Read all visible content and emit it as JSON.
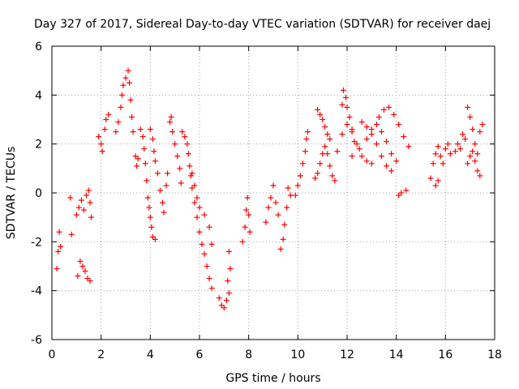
{
  "chart_data": {
    "type": "scatter",
    "title": "Day 327 of 2017, Sidereal Day-to-day VTEC variation (SDTVAR) for receiver daej",
    "xlabel": "GPS time / hours",
    "ylabel": "SDTVAR / TECUs",
    "xlim": [
      0,
      18
    ],
    "ylim": [
      -6,
      6
    ],
    "xticks": [
      0,
      2,
      4,
      6,
      8,
      10,
      12,
      14,
      16,
      18
    ],
    "yticks": [
      -6,
      -4,
      -2,
      0,
      2,
      4,
      6
    ],
    "grid": true,
    "marker": "+",
    "color": "#ff0000",
    "series": [
      {
        "name": "daej",
        "points": [
          [
            0.2,
            -3.1
          ],
          [
            0.25,
            -2.4
          ],
          [
            0.3,
            -1.6
          ],
          [
            0.35,
            -2.2
          ],
          [
            0.75,
            -0.2
          ],
          [
            0.8,
            -1.7
          ],
          [
            1.0,
            -0.9
          ],
          [
            1.1,
            -0.6
          ],
          [
            1.2,
            -0.3
          ],
          [
            1.3,
            -0.7
          ],
          [
            1.4,
            -0.1
          ],
          [
            1.5,
            0.1
          ],
          [
            1.55,
            -0.4
          ],
          [
            1.6,
            -1.0
          ],
          [
            1.05,
            -3.4
          ],
          [
            1.15,
            -2.8
          ],
          [
            1.25,
            -3.0
          ],
          [
            1.35,
            -3.2
          ],
          [
            1.45,
            -3.5
          ],
          [
            1.55,
            -3.6
          ],
          [
            1.9,
            2.3
          ],
          [
            2.0,
            2.0
          ],
          [
            2.05,
            1.7
          ],
          [
            2.15,
            2.6
          ],
          [
            2.2,
            3.0
          ],
          [
            2.3,
            3.2
          ],
          [
            2.6,
            2.5
          ],
          [
            2.7,
            2.9
          ],
          [
            2.8,
            3.5
          ],
          [
            2.85,
            4.0
          ],
          [
            2.9,
            4.4
          ],
          [
            3.0,
            4.7
          ],
          [
            3.1,
            5.0
          ],
          [
            3.15,
            4.5
          ],
          [
            3.2,
            3.8
          ],
          [
            3.25,
            3.1
          ],
          [
            3.3,
            2.5
          ],
          [
            3.4,
            1.5
          ],
          [
            3.45,
            1.1
          ],
          [
            3.5,
            1.4
          ],
          [
            3.6,
            2.6
          ],
          [
            3.7,
            2.3
          ],
          [
            3.75,
            1.8
          ],
          [
            3.8,
            1.2
          ],
          [
            3.85,
            0.5
          ],
          [
            3.9,
            -0.2
          ],
          [
            3.95,
            -0.6
          ],
          [
            4.0,
            -1.0
          ],
          [
            4.05,
            -1.4
          ],
          [
            4.1,
            -1.8
          ],
          [
            4.2,
            -1.9
          ],
          [
            4.0,
            2.6
          ],
          [
            4.1,
            2.2
          ],
          [
            4.15,
            1.7
          ],
          [
            4.2,
            1.3
          ],
          [
            4.3,
            0.8
          ],
          [
            4.4,
            0.1
          ],
          [
            4.5,
            -0.4
          ],
          [
            4.55,
            -0.8
          ],
          [
            4.65,
            0.3
          ],
          [
            4.7,
            0.8
          ],
          [
            4.8,
            2.9
          ],
          [
            4.85,
            3.1
          ],
          [
            4.9,
            2.5
          ],
          [
            5.0,
            2.0
          ],
          [
            5.1,
            1.5
          ],
          [
            5.2,
            1.0
          ],
          [
            5.25,
            0.4
          ],
          [
            5.3,
            2.5
          ],
          [
            5.4,
            2.3
          ],
          [
            5.5,
            2.0
          ],
          [
            5.55,
            1.6
          ],
          [
            5.6,
            1.1
          ],
          [
            5.65,
            0.7
          ],
          [
            5.7,
            0.2
          ],
          [
            5.8,
            -0.4
          ],
          [
            5.9,
            -1.0
          ],
          [
            6.0,
            -1.6
          ],
          [
            6.1,
            -2.1
          ],
          [
            6.2,
            -2.5
          ],
          [
            6.3,
            -3.0
          ],
          [
            6.4,
            -3.5
          ],
          [
            6.5,
            -3.9
          ],
          [
            5.7,
            0.8
          ],
          [
            5.8,
            0.3
          ],
          [
            5.9,
            -0.2
          ],
          [
            6.0,
            -0.6
          ],
          [
            6.2,
            -0.9
          ],
          [
            6.4,
            -1.4
          ],
          [
            6.5,
            -2.1
          ],
          [
            6.8,
            -4.3
          ],
          [
            6.9,
            -4.6
          ],
          [
            7.0,
            -4.7
          ],
          [
            7.1,
            -4.4
          ],
          [
            7.2,
            -4.1
          ],
          [
            7.15,
            -3.6
          ],
          [
            7.25,
            -3.1
          ],
          [
            7.2,
            -2.4
          ],
          [
            7.75,
            -2.0
          ],
          [
            7.85,
            -1.4
          ],
          [
            7.9,
            -0.7
          ],
          [
            7.95,
            -0.2
          ],
          [
            8.0,
            -0.9
          ],
          [
            8.05,
            -1.6
          ],
          [
            8.7,
            -1.2
          ],
          [
            8.8,
            -0.6
          ],
          [
            8.9,
            -0.2
          ],
          [
            9.0,
            0.3
          ],
          [
            9.1,
            -0.4
          ],
          [
            9.2,
            -0.9
          ],
          [
            9.3,
            -2.3
          ],
          [
            9.4,
            -1.9
          ],
          [
            9.45,
            -1.3
          ],
          [
            9.55,
            -0.6
          ],
          [
            9.6,
            0.2
          ],
          [
            9.7,
            -0.1
          ],
          [
            9.9,
            -0.1
          ],
          [
            10.0,
            0.3
          ],
          [
            10.1,
            0.7
          ],
          [
            10.2,
            1.2
          ],
          [
            10.3,
            1.7
          ],
          [
            10.35,
            2.2
          ],
          [
            10.4,
            2.5
          ],
          [
            10.7,
            0.6
          ],
          [
            10.8,
            0.8
          ],
          [
            10.9,
            1.2
          ],
          [
            11.0,
            1.6
          ],
          [
            11.1,
            1.9
          ],
          [
            11.2,
            1.6
          ],
          [
            11.3,
            1.1
          ],
          [
            11.4,
            0.7
          ],
          [
            11.5,
            0.5
          ],
          [
            10.8,
            3.4
          ],
          [
            10.9,
            3.2
          ],
          [
            11.0,
            3.0
          ],
          [
            11.1,
            2.7
          ],
          [
            11.2,
            2.4
          ],
          [
            11.3,
            2.2
          ],
          [
            11.8,
            3.6
          ],
          [
            11.85,
            4.2
          ],
          [
            11.95,
            3.9
          ],
          [
            12.0,
            3.5
          ],
          [
            12.1,
            3.1
          ],
          [
            12.2,
            2.6
          ],
          [
            12.3,
            2.1
          ],
          [
            11.6,
            1.7
          ],
          [
            11.8,
            2.4
          ],
          [
            12.0,
            2.8
          ],
          [
            12.2,
            2.5
          ],
          [
            12.4,
            2.0
          ],
          [
            12.6,
            1.5
          ],
          [
            12.8,
            1.3
          ],
          [
            13.0,
            1.2
          ],
          [
            12.2,
            1.5
          ],
          [
            12.5,
            1.8
          ],
          [
            12.8,
            2.2
          ],
          [
            13.0,
            2.6
          ],
          [
            13.2,
            2.8
          ],
          [
            13.4,
            2.5
          ],
          [
            13.6,
            2.1
          ],
          [
            13.8,
            1.6
          ],
          [
            14.0,
            1.3
          ],
          [
            12.6,
            2.9
          ],
          [
            12.8,
            2.7
          ],
          [
            13.0,
            2.4
          ],
          [
            13.2,
            2.0
          ],
          [
            13.4,
            1.5
          ],
          [
            13.6,
            1.1
          ],
          [
            13.8,
            0.9
          ],
          [
            13.3,
            3.1
          ],
          [
            13.5,
            3.4
          ],
          [
            13.7,
            3.5
          ],
          [
            13.9,
            3.2
          ],
          [
            14.1,
            2.8
          ],
          [
            14.3,
            2.3
          ],
          [
            14.5,
            1.9
          ],
          [
            14.1,
            -0.1
          ],
          [
            14.2,
            0.0
          ],
          [
            14.4,
            0.1
          ],
          [
            15.4,
            0.6
          ],
          [
            15.5,
            1.2
          ],
          [
            15.6,
            1.6
          ],
          [
            15.7,
            1.9
          ],
          [
            15.8,
            1.5
          ],
          [
            15.9,
            1.2
          ],
          [
            16.0,
            1.8
          ],
          [
            16.1,
            2.0
          ],
          [
            16.2,
            1.6
          ],
          [
            15.6,
            0.3
          ],
          [
            15.7,
            0.5
          ],
          [
            16.4,
            1.7
          ],
          [
            16.5,
            2.0
          ],
          [
            16.6,
            1.8
          ],
          [
            16.7,
            2.4
          ],
          [
            16.8,
            2.2
          ],
          [
            16.9,
            3.5
          ],
          [
            17.0,
            3.1
          ],
          [
            17.1,
            2.6
          ],
          [
            17.2,
            2.0
          ],
          [
            17.3,
            1.6
          ],
          [
            17.4,
            2.5
          ],
          [
            17.5,
            2.8
          ],
          [
            16.9,
            1.2
          ],
          [
            17.0,
            1.5
          ],
          [
            17.1,
            1.7
          ],
          [
            17.2,
            1.3
          ],
          [
            17.3,
            0.9
          ],
          [
            17.4,
            0.7
          ]
        ]
      }
    ]
  }
}
